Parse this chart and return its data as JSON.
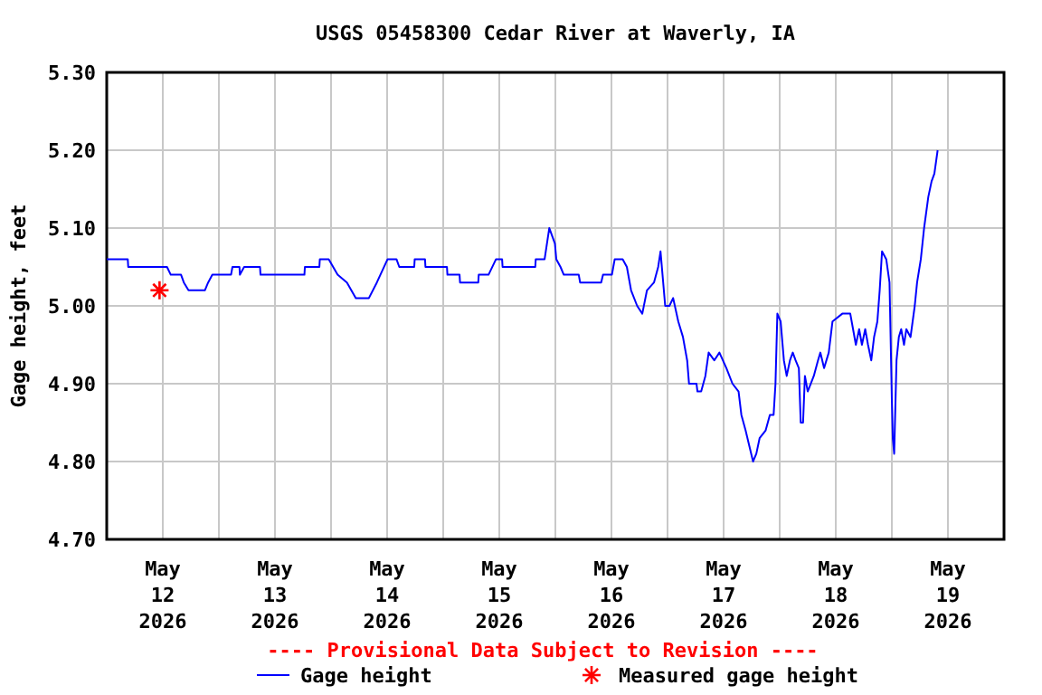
{
  "chart_data": {
    "type": "line",
    "title": "USGS 05458300 Cedar River at Waverly, IA",
    "ylabel": "Gage height, feet",
    "xlim": [
      "2026-05-12T00:00",
      "2026-05-20T00:00"
    ],
    "xticks": [
      {
        "value": "2026-05-12T12:00",
        "label": "May 12 2026"
      },
      {
        "value": "2026-05-13T12:00",
        "label": "May 13 2026"
      },
      {
        "value": "2026-05-14T12:00",
        "label": "May 14 2026"
      },
      {
        "value": "2026-05-15T12:00",
        "label": "May 15 2026"
      },
      {
        "value": "2026-05-16T12:00",
        "label": "May 16 2026"
      },
      {
        "value": "2026-05-17T12:00",
        "label": "May 17 2026"
      },
      {
        "value": "2026-05-18T12:00",
        "label": "May 18 2026"
      },
      {
        "value": "2026-05-19T12:00",
        "label": "May 19 2026"
      },
      {
        "value": "2026-05-13T00:00",
        "label": null
      },
      {
        "value": "2026-05-14T00:00",
        "label": null
      },
      {
        "value": "2026-05-15T00:00",
        "label": null
      },
      {
        "value": "2026-05-16T00:00",
        "label": null
      },
      {
        "value": "2026-05-17T00:00",
        "label": null
      },
      {
        "value": "2026-05-18T00:00",
        "label": null
      },
      {
        "value": "2026-05-19T00:00",
        "label": null
      }
    ],
    "ylim": [
      4.7,
      5.3
    ],
    "yticks": [
      {
        "value": 4.7,
        "label": "4.70"
      },
      {
        "value": 4.8,
        "label": "4.80"
      },
      {
        "value": 4.9,
        "label": "4.90"
      },
      {
        "value": 5.0,
        "label": "5.00"
      },
      {
        "value": 5.1,
        "label": "5.10"
      },
      {
        "value": 5.2,
        "label": "5.20"
      },
      {
        "value": 5.3,
        "label": "5.30"
      }
    ],
    "grid": true,
    "legend": "bottom",
    "annotations": [
      "---- Provisional Data Subject to Revision ----"
    ],
    "series": [
      {
        "name": "Gage height",
        "color": "#0000ff",
        "line_style": "solid",
        "marker": "none",
        "x": [
          "2026-05-12T00:00",
          "2026-05-12T04:30",
          "2026-05-12T04:36",
          "2026-05-12T11:42",
          "2026-05-12T12:54",
          "2026-05-12T13:42",
          "2026-05-12T15:54",
          "2026-05-12T16:30",
          "2026-05-12T17:30",
          "2026-05-12T21:00",
          "2026-05-12T21:42",
          "2026-05-12T22:36",
          "2026-05-13T02:36",
          "2026-05-13T02:54",
          "2026-05-13T04:24",
          "2026-05-13T04:30",
          "2026-05-13T05:24",
          "2026-05-13T08:48",
          "2026-05-13T08:54",
          "2026-05-13T18:18",
          "2026-05-13T18:24",
          "2026-05-13T21:30",
          "2026-05-13T21:36",
          "2026-05-13T23:30",
          "2026-05-14T01:24",
          "2026-05-14T03:24",
          "2026-05-14T05:18",
          "2026-05-14T08:06",
          "2026-05-14T09:48",
          "2026-05-14T12:06",
          "2026-05-14T14:00",
          "2026-05-14T14:36",
          "2026-05-14T17:48",
          "2026-05-14T17:54",
          "2026-05-14T20:06",
          "2026-05-14T20:12",
          "2026-05-15T00:48",
          "2026-05-15T00:54",
          "2026-05-15T03:30",
          "2026-05-15T03:36",
          "2026-05-15T07:30",
          "2026-05-15T07:36",
          "2026-05-15T09:42",
          "2026-05-15T11:18",
          "2026-05-15T12:36",
          "2026-05-15T12:42",
          "2026-05-15T19:42",
          "2026-05-15T19:48",
          "2026-05-15T21:42",
          "2026-05-15T22:12",
          "2026-05-15T22:42",
          "2026-05-15T23:54",
          "2026-05-16T00:12",
          "2026-05-16T01:06",
          "2026-05-16T01:48",
          "2026-05-16T05:00",
          "2026-05-16T05:18",
          "2026-05-16T09:48",
          "2026-05-16T10:12",
          "2026-05-16T12:06",
          "2026-05-16T12:42",
          "2026-05-16T14:24",
          "2026-05-16T15:18",
          "2026-05-16T16:12",
          "2026-05-16T17:30",
          "2026-05-16T18:36",
          "2026-05-16T19:36",
          "2026-05-16T21:06",
          "2026-05-16T22:00",
          "2026-05-16T22:30",
          "2026-05-16T23:30",
          "2026-05-17T00:24",
          "2026-05-17T01:12",
          "2026-05-17T02:18",
          "2026-05-17T03:18",
          "2026-05-17T04:12",
          "2026-05-17T04:36",
          "2026-05-17T06:12",
          "2026-05-17T06:24",
          "2026-05-17T07:12",
          "2026-05-17T08:06",
          "2026-05-17T08:48",
          "2026-05-17T10:00",
          "2026-05-17T11:06",
          "2026-05-17T12:36",
          "2026-05-17T13:54",
          "2026-05-17T15:12",
          "2026-05-17T15:48",
          "2026-05-17T16:42",
          "2026-05-17T17:30",
          "2026-05-17T18:18",
          "2026-05-17T19:00",
          "2026-05-17T19:42",
          "2026-05-17T21:00",
          "2026-05-17T21:54",
          "2026-05-17T22:42",
          "2026-05-17T23:06",
          "2026-05-17T23:30",
          "2026-05-18T00:12",
          "2026-05-18T00:54",
          "2026-05-18T01:30",
          "2026-05-18T02:12",
          "2026-05-18T02:48",
          "2026-05-18T03:24",
          "2026-05-18T04:06",
          "2026-05-18T04:30",
          "2026-05-18T05:00",
          "2026-05-18T05:24",
          "2026-05-18T06:00",
          "2026-05-18T07:18",
          "2026-05-18T08:12",
          "2026-05-18T08:42",
          "2026-05-18T09:30",
          "2026-05-18T10:30",
          "2026-05-18T11:18",
          "2026-05-18T13:24",
          "2026-05-18T15:06",
          "2026-05-18T15:42",
          "2026-05-18T16:18",
          "2026-05-18T17:00",
          "2026-05-18T17:36",
          "2026-05-18T18:18",
          "2026-05-18T18:54",
          "2026-05-18T19:36",
          "2026-05-18T20:12",
          "2026-05-18T20:54",
          "2026-05-18T21:24",
          "2026-05-18T21:54",
          "2026-05-18T22:48",
          "2026-05-18T23:30",
          "2026-05-19T00:00",
          "2026-05-19T00:12",
          "2026-05-19T00:30",
          "2026-05-19T01:00",
          "2026-05-19T01:30",
          "2026-05-19T02:00",
          "2026-05-19T02:36",
          "2026-05-19T03:06",
          "2026-05-19T04:00",
          "2026-05-19T04:54",
          "2026-05-19T05:24",
          "2026-05-19T06:12",
          "2026-05-19T06:54",
          "2026-05-19T07:48",
          "2026-05-19T08:30",
          "2026-05-19T09:06",
          "2026-05-19T09:48"
        ],
        "values": [
          5.06,
          5.06,
          5.05,
          5.05,
          5.05,
          5.04,
          5.04,
          5.03,
          5.02,
          5.02,
          5.03,
          5.04,
          5.04,
          5.05,
          5.05,
          5.04,
          5.05,
          5.05,
          5.04,
          5.04,
          5.05,
          5.05,
          5.06,
          5.06,
          5.04,
          5.03,
          5.01,
          5.01,
          5.03,
          5.06,
          5.06,
          5.05,
          5.05,
          5.06,
          5.06,
          5.05,
          5.05,
          5.04,
          5.04,
          5.03,
          5.03,
          5.04,
          5.04,
          5.06,
          5.06,
          5.05,
          5.05,
          5.06,
          5.06,
          5.08,
          5.1,
          5.08,
          5.06,
          5.05,
          5.04,
          5.04,
          5.03,
          5.03,
          5.04,
          5.04,
          5.06,
          5.06,
          5.05,
          5.02,
          5.0,
          4.99,
          5.02,
          5.03,
          5.05,
          5.07,
          5.0,
          5.0,
          5.01,
          4.98,
          4.96,
          4.93,
          4.9,
          4.9,
          4.89,
          4.89,
          4.91,
          4.94,
          4.93,
          4.94,
          4.92,
          4.9,
          4.89,
          4.86,
          4.84,
          4.82,
          4.8,
          4.81,
          4.83,
          4.84,
          4.86,
          4.86,
          4.9,
          4.99,
          4.98,
          4.93,
          4.91,
          4.93,
          4.94,
          4.93,
          4.92,
          4.85,
          4.85,
          4.91,
          4.89,
          4.91,
          4.93,
          4.94,
          4.92,
          4.94,
          4.98,
          4.99,
          4.99,
          4.97,
          4.95,
          4.97,
          4.95,
          4.97,
          4.95,
          4.93,
          4.96,
          4.98,
          5.02,
          5.07,
          5.06,
          5.03,
          4.88,
          4.83,
          4.81,
          4.93,
          4.96,
          4.97,
          4.95,
          4.97,
          4.96,
          5.0,
          5.03,
          5.06,
          5.1,
          5.14,
          5.16,
          5.17,
          5.2
        ]
      },
      {
        "name": "Measured gage height",
        "type": "scatter",
        "color": "#ff0000",
        "marker": "cross",
        "x": [
          "2026-05-12T11:18"
        ],
        "values": [
          5.02
        ]
      }
    ]
  }
}
